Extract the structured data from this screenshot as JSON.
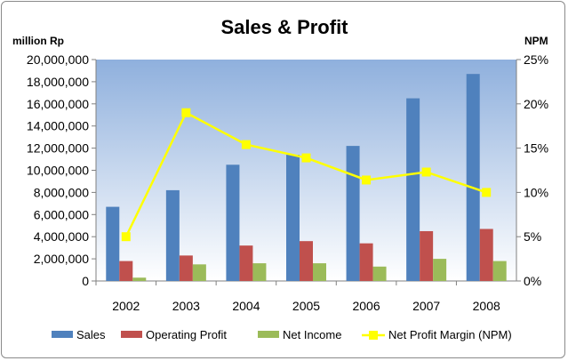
{
  "chart_data": {
    "type": "bar",
    "title": "Sales & Profit",
    "ylabel": "million Rp",
    "y2label": "NPM",
    "categories": [
      "2002",
      "2003",
      "2004",
      "2005",
      "2006",
      "2007",
      "2008"
    ],
    "ylim": [
      0,
      20000000
    ],
    "y2lim": [
      0,
      0.25
    ],
    "y_ticks": [
      "0",
      "2,000,000",
      "4,000,000",
      "6,000,000",
      "8,000,000",
      "10,000,000",
      "12,000,000",
      "14,000,000",
      "16,000,000",
      "18,000,000",
      "20,000,000"
    ],
    "y2_ticks": [
      "0%",
      "5%",
      "10%",
      "15%",
      "20%",
      "25%"
    ],
    "series": [
      {
        "name": "Sales",
        "type": "bar",
        "color": "#4f81bd",
        "values": [
          6700000,
          8200000,
          10500000,
          11400000,
          12200000,
          16500000,
          18700000
        ]
      },
      {
        "name": "Operating Profit",
        "type": "bar",
        "color": "#c0504d",
        "values": [
          1800000,
          2300000,
          3200000,
          3600000,
          3400000,
          4500000,
          4700000
        ]
      },
      {
        "name": "Net Income",
        "type": "bar",
        "color": "#9bbb59",
        "values": [
          300000,
          1500000,
          1600000,
          1600000,
          1300000,
          2000000,
          1800000
        ]
      },
      {
        "name": "Net Profit Margin (NPM)",
        "type": "line",
        "axis": "right",
        "color": "#ffff00",
        "values": [
          0.05,
          0.19,
          0.154,
          0.139,
          0.114,
          0.123,
          0.1
        ]
      }
    ],
    "legend_position": "bottom",
    "grid": false
  }
}
